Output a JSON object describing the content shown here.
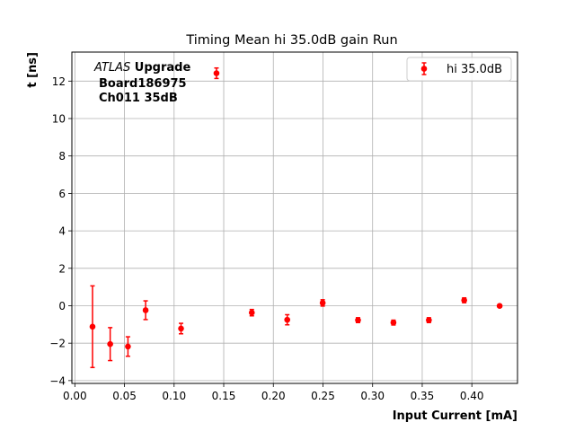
{
  "chart_data": {
    "type": "scatter",
    "title": "Timing Mean hi 35.0dB gain Run",
    "xlabel": "Input Current [mA]",
    "ylabel": "t [ns]",
    "xlim": [
      -0.003,
      0.446
    ],
    "ylim": [
      -4.15,
      13.55
    ],
    "xticks": [
      "0.00",
      "0.05",
      "0.10",
      "0.15",
      "0.20",
      "0.25",
      "0.30",
      "0.35",
      "0.40"
    ],
    "yticks": [
      "−4",
      "−2",
      "0",
      "2",
      "4",
      "6",
      "8",
      "10",
      "12"
    ],
    "xtick_values": [
      0.0,
      0.05,
      0.1,
      0.15,
      0.2,
      0.25,
      0.3,
      0.35,
      0.4
    ],
    "ytick_values": [
      -4,
      -2,
      0,
      2,
      4,
      6,
      8,
      10,
      12
    ],
    "grid": true,
    "legend_position": "top-right",
    "series": [
      {
        "name": "hi 35.0dB",
        "color": "#ff0000",
        "points": [
          {
            "x": 0.0178,
            "y": -1.12,
            "err": 2.18
          },
          {
            "x": 0.0356,
            "y": -2.05,
            "err": 0.88
          },
          {
            "x": 0.0535,
            "y": -2.18,
            "err": 0.52
          },
          {
            "x": 0.0713,
            "y": -0.24,
            "err": 0.5
          },
          {
            "x": 0.107,
            "y": -1.22,
            "err": 0.28
          },
          {
            "x": 0.1427,
            "y": 12.42,
            "err": 0.28
          },
          {
            "x": 0.1783,
            "y": -0.37,
            "err": 0.17
          },
          {
            "x": 0.214,
            "y": -0.75,
            "err": 0.27
          },
          {
            "x": 0.2497,
            "y": 0.15,
            "err": 0.17
          },
          {
            "x": 0.2853,
            "y": -0.77,
            "err": 0.13
          },
          {
            "x": 0.321,
            "y": -0.9,
            "err": 0.13
          },
          {
            "x": 0.3567,
            "y": -0.77,
            "err": 0.13
          },
          {
            "x": 0.3923,
            "y": 0.29,
            "err": 0.13
          },
          {
            "x": 0.428,
            "y": -0.01,
            "err": 0.07
          }
        ]
      }
    ],
    "annotation": {
      "line1_italic": "ATLAS",
      "line1_bold": " Upgrade",
      "line2": "Board186975",
      "line3": "Ch011 35dB"
    }
  }
}
